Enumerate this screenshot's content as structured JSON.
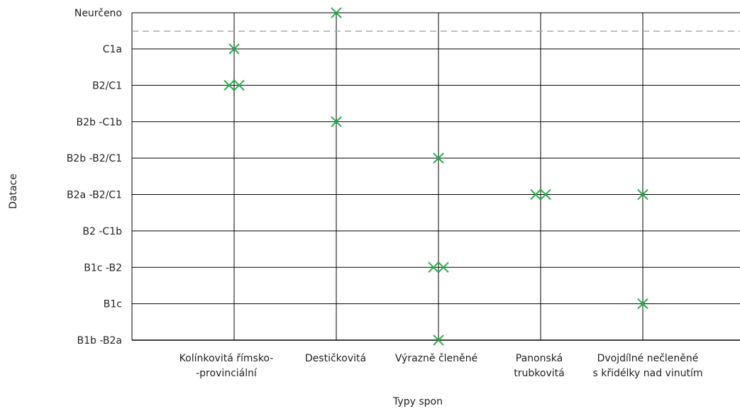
{
  "chart_data": {
    "type": "scatter",
    "xlabel": "Typy spon",
    "ylabel": "Datace",
    "categories": [
      [
        "Kolínkovitá římsko-",
        "-provinciální"
      ],
      [
        "Destičkovitá"
      ],
      [
        "Výrazně členěné"
      ],
      [
        "Panonská",
        "trubkovitá"
      ],
      [
        "Dvojdílné nečleněné",
        "s křidélky nad vinutím"
      ]
    ],
    "y_categories": [
      "B1b -B2a",
      "B1c",
      "B1c -B2",
      "B2 -C1b",
      "B2a -B2/C1",
      "B2b -B2/C1",
      "B2b -C1b",
      "B2/C1",
      "C1a",
      "Neurčeno"
    ],
    "grid": true,
    "separator_line": {
      "between": [
        "C1a",
        "Neurčeno"
      ],
      "style": "dashed"
    },
    "points": [
      {
        "x": 0,
        "y": "C1a",
        "count": 1
      },
      {
        "x": 0,
        "y": "B2/C1",
        "count": 2
      },
      {
        "x": 1,
        "y": "Neurčeno",
        "count": 1
      },
      {
        "x": 1,
        "y": "B2b -C1b",
        "count": 1
      },
      {
        "x": 2,
        "y": "B2b -B2/C1",
        "count": 1
      },
      {
        "x": 2,
        "y": "B1c -B2",
        "count": 2
      },
      {
        "x": 2,
        "y": "B1b -B2a",
        "count": 1
      },
      {
        "x": 3,
        "y": "B2a -B2/C1",
        "count": 2
      },
      {
        "x": 4,
        "y": "B2a -B2/C1",
        "count": 1
      },
      {
        "x": 4,
        "y": "B1c",
        "count": 1
      }
    ],
    "colors": {
      "marker": "#2bb24c",
      "grid": "#000000",
      "separator": "#aaaaaa"
    }
  }
}
